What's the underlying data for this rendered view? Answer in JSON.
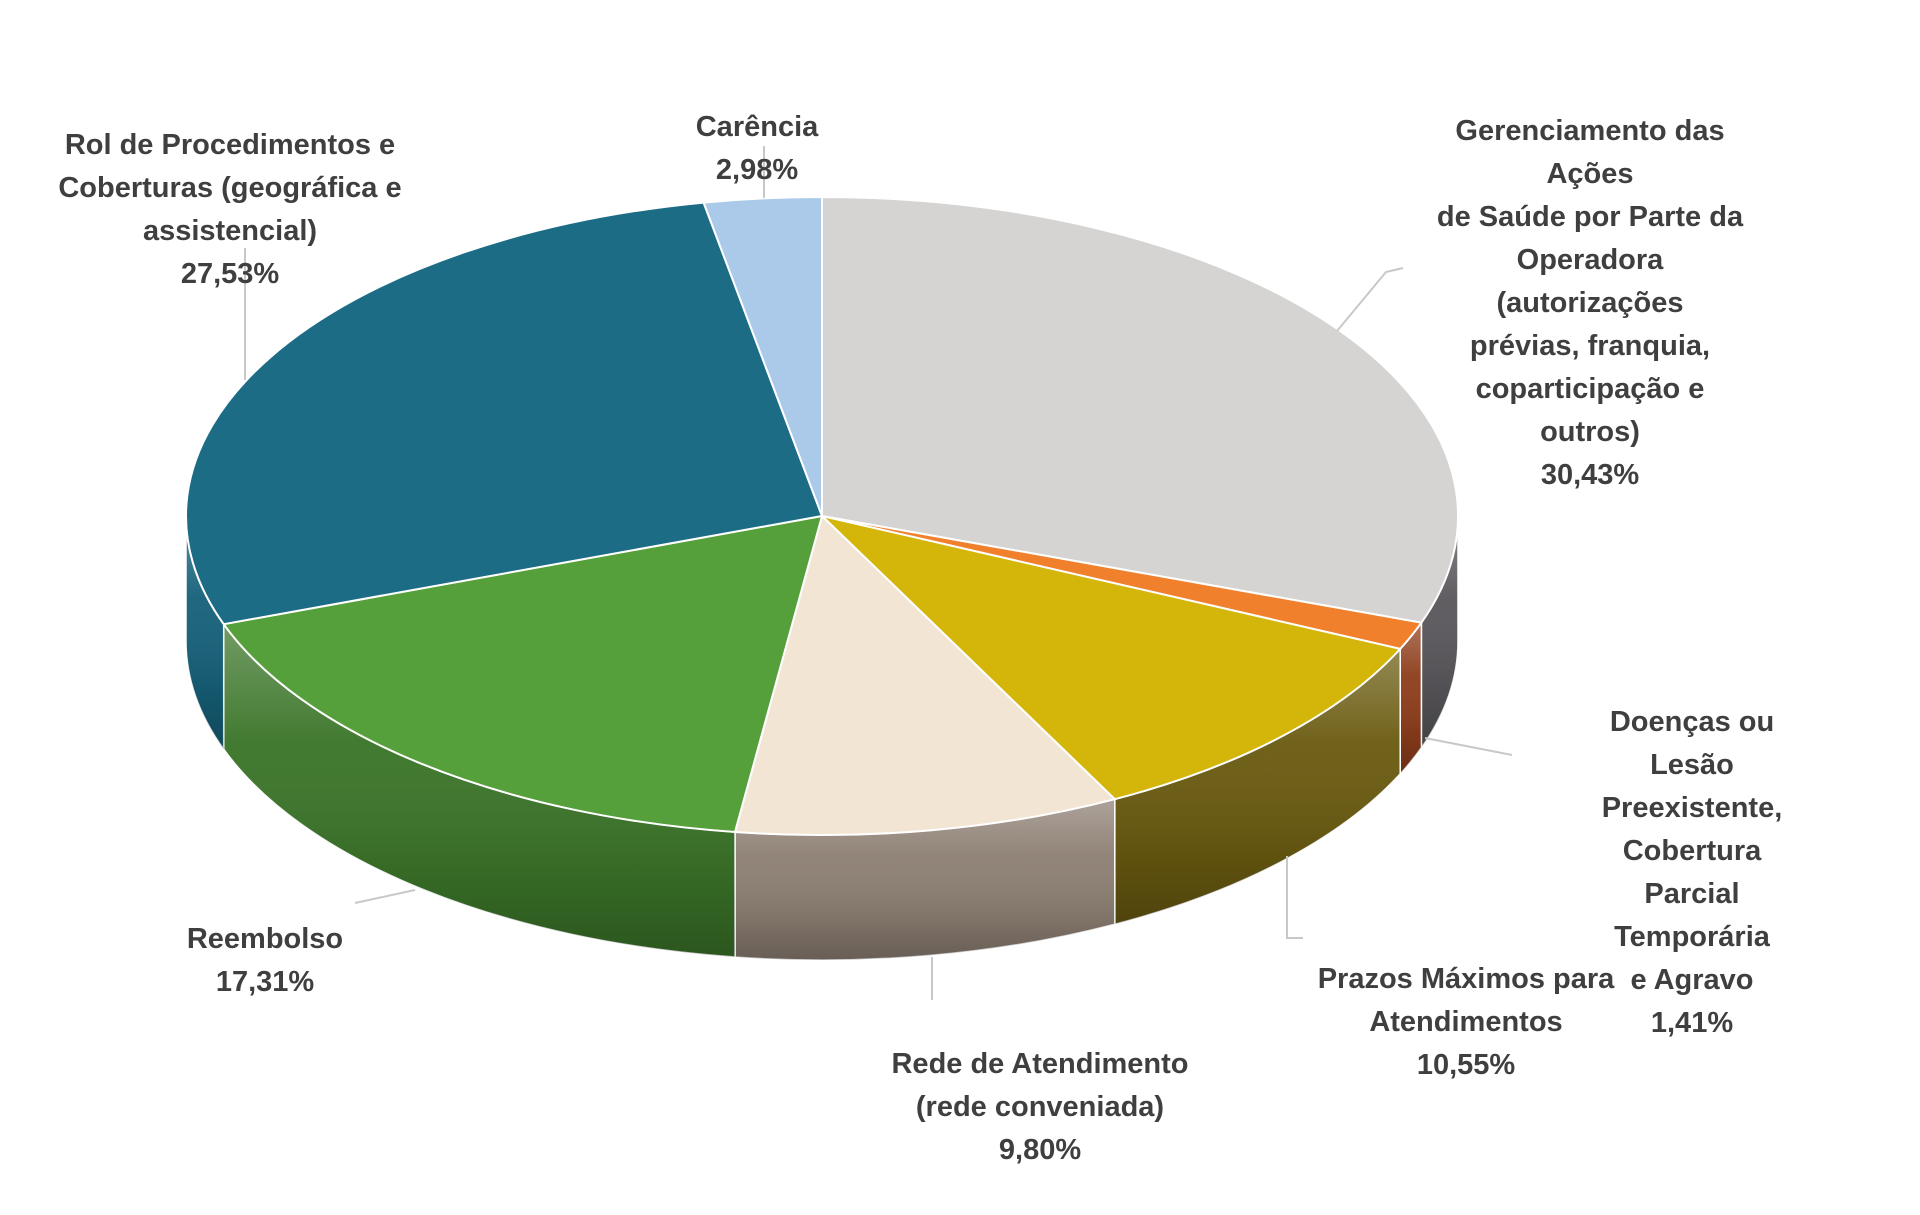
{
  "figure": {
    "background": "#ffffff",
    "text_color": "#3f3f3f",
    "leader_line_color": "#c8c8c8",
    "slice_border_color": "#ffffff"
  },
  "chart_data": {
    "type": "pie",
    "style": "3d-pie",
    "title": "",
    "legend": "none",
    "labels_position": "outside",
    "start_angle_deg": 0,
    "clockwise": true,
    "value_unit": "%",
    "slices": [
      {
        "label": "Gerenciamento das Ações de Saúde por Parte da Operadora (autorizações prévias, franquia, coparticipação e outros)",
        "value": 30.43,
        "display": "30,43%",
        "color": "#d5d4d2",
        "side_color": "#5a585c"
      },
      {
        "label": "Doenças ou Lesão Preexistente, Cobertura Parcial Temporária e Agravo",
        "value": 1.41,
        "display": "1,41%",
        "color": "#f0802c",
        "side_color": "#8e3e1c"
      },
      {
        "label": "Prazos Máximos para Atendimentos",
        "value": 10.55,
        "display": "10,55%",
        "color": "#d4b50a",
        "side_color": "#6a5b10"
      },
      {
        "label": "Rede de Atendimento (rede conveniada)",
        "value": 9.8,
        "display": "9,80%",
        "color": "#f3e5d4",
        "side_color": "#8d7f73"
      },
      {
        "label": "Reembolso",
        "value": 17.31,
        "display": "17,31%",
        "color": "#56a03b",
        "side_color": "#3b7529"
      },
      {
        "label": "Rol de Procedimentos e Coberturas (geográfica e assistencial)",
        "value": 27.53,
        "display": "27,53%",
        "color": "#1d6c86",
        "side_color": "#16617a"
      },
      {
        "label": "Carência",
        "value": 2.98,
        "display": "2,98%",
        "color": "#abc9e9",
        "side_color": "#7e9fc4"
      }
    ]
  },
  "labels": {
    "rol": {
      "text": "Rol de Procedimentos e\nCoberturas (geográfica e\nassistencial)",
      "pct": "27,53%"
    },
    "carencia": {
      "text": "Carência",
      "pct": "2,98%"
    },
    "gerenciamento": {
      "text": "Gerenciamento das Ações\nde Saúde por Parte da\nOperadora (autorizações\nprévias, franquia,\ncoparticipação e outros)",
      "pct": "30,43%"
    },
    "doencas": {
      "text": "Doenças ou Lesão\nPreexistente, Cobertura\nParcial Temporária\ne Agravo",
      "pct": "1,41%"
    },
    "prazos": {
      "text": "Prazos Máximos para\nAtendimentos",
      "pct": "10,55%"
    },
    "rede": {
      "text": "Rede de Atendimento\n(rede conveniada)",
      "pct": "9,80%"
    },
    "reembolso": {
      "text": "Reembolso",
      "pct": "17,31%"
    }
  }
}
